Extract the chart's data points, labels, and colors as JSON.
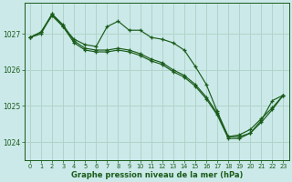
{
  "background_color": "#cbe9e9",
  "grid_color": "#b0d4c8",
  "line_color": "#1a5c1a",
  "marker": "+",
  "xlabel": "Graphe pression niveau de la mer (hPa)",
  "xlabel_color": "#1a5c1a",
  "tick_color": "#1a5c1a",
  "xlim": [
    -0.5,
    23.5
  ],
  "ylim": [
    1023.5,
    1027.85
  ],
  "yticks": [
    1024,
    1025,
    1026,
    1027
  ],
  "xticks": [
    0,
    1,
    2,
    3,
    4,
    5,
    6,
    7,
    8,
    9,
    10,
    11,
    12,
    13,
    14,
    15,
    16,
    17,
    18,
    19,
    20,
    21,
    22,
    23
  ],
  "series": [
    [
      1026.9,
      1027.0,
      1027.55,
      1027.2,
      1026.85,
      1026.7,
      1026.65,
      1027.2,
      1027.35,
      1027.1,
      1027.1,
      1026.9,
      1026.85,
      1026.75,
      1026.55,
      1026.1,
      1025.6,
      1024.85,
      1024.15,
      1024.15,
      1024.25,
      1024.6,
      1025.15,
      1025.3
    ],
    [
      1026.9,
      1027.05,
      1027.55,
      1027.25,
      1026.8,
      1026.6,
      1026.55,
      1026.55,
      1026.6,
      1026.55,
      1026.45,
      1026.3,
      1026.2,
      1026.0,
      1025.85,
      1025.6,
      1025.25,
      1024.8,
      1024.15,
      1024.2,
      1024.35,
      1024.65,
      1024.95,
      1025.3
    ],
    [
      1026.9,
      1027.05,
      1027.5,
      1027.2,
      1026.75,
      1026.55,
      1026.5,
      1026.5,
      1026.55,
      1026.5,
      1026.4,
      1026.25,
      1026.15,
      1025.95,
      1025.8,
      1025.55,
      1025.2,
      1024.75,
      1024.1,
      1024.1,
      1024.25,
      1024.55,
      1024.9,
      1025.3
    ]
  ]
}
